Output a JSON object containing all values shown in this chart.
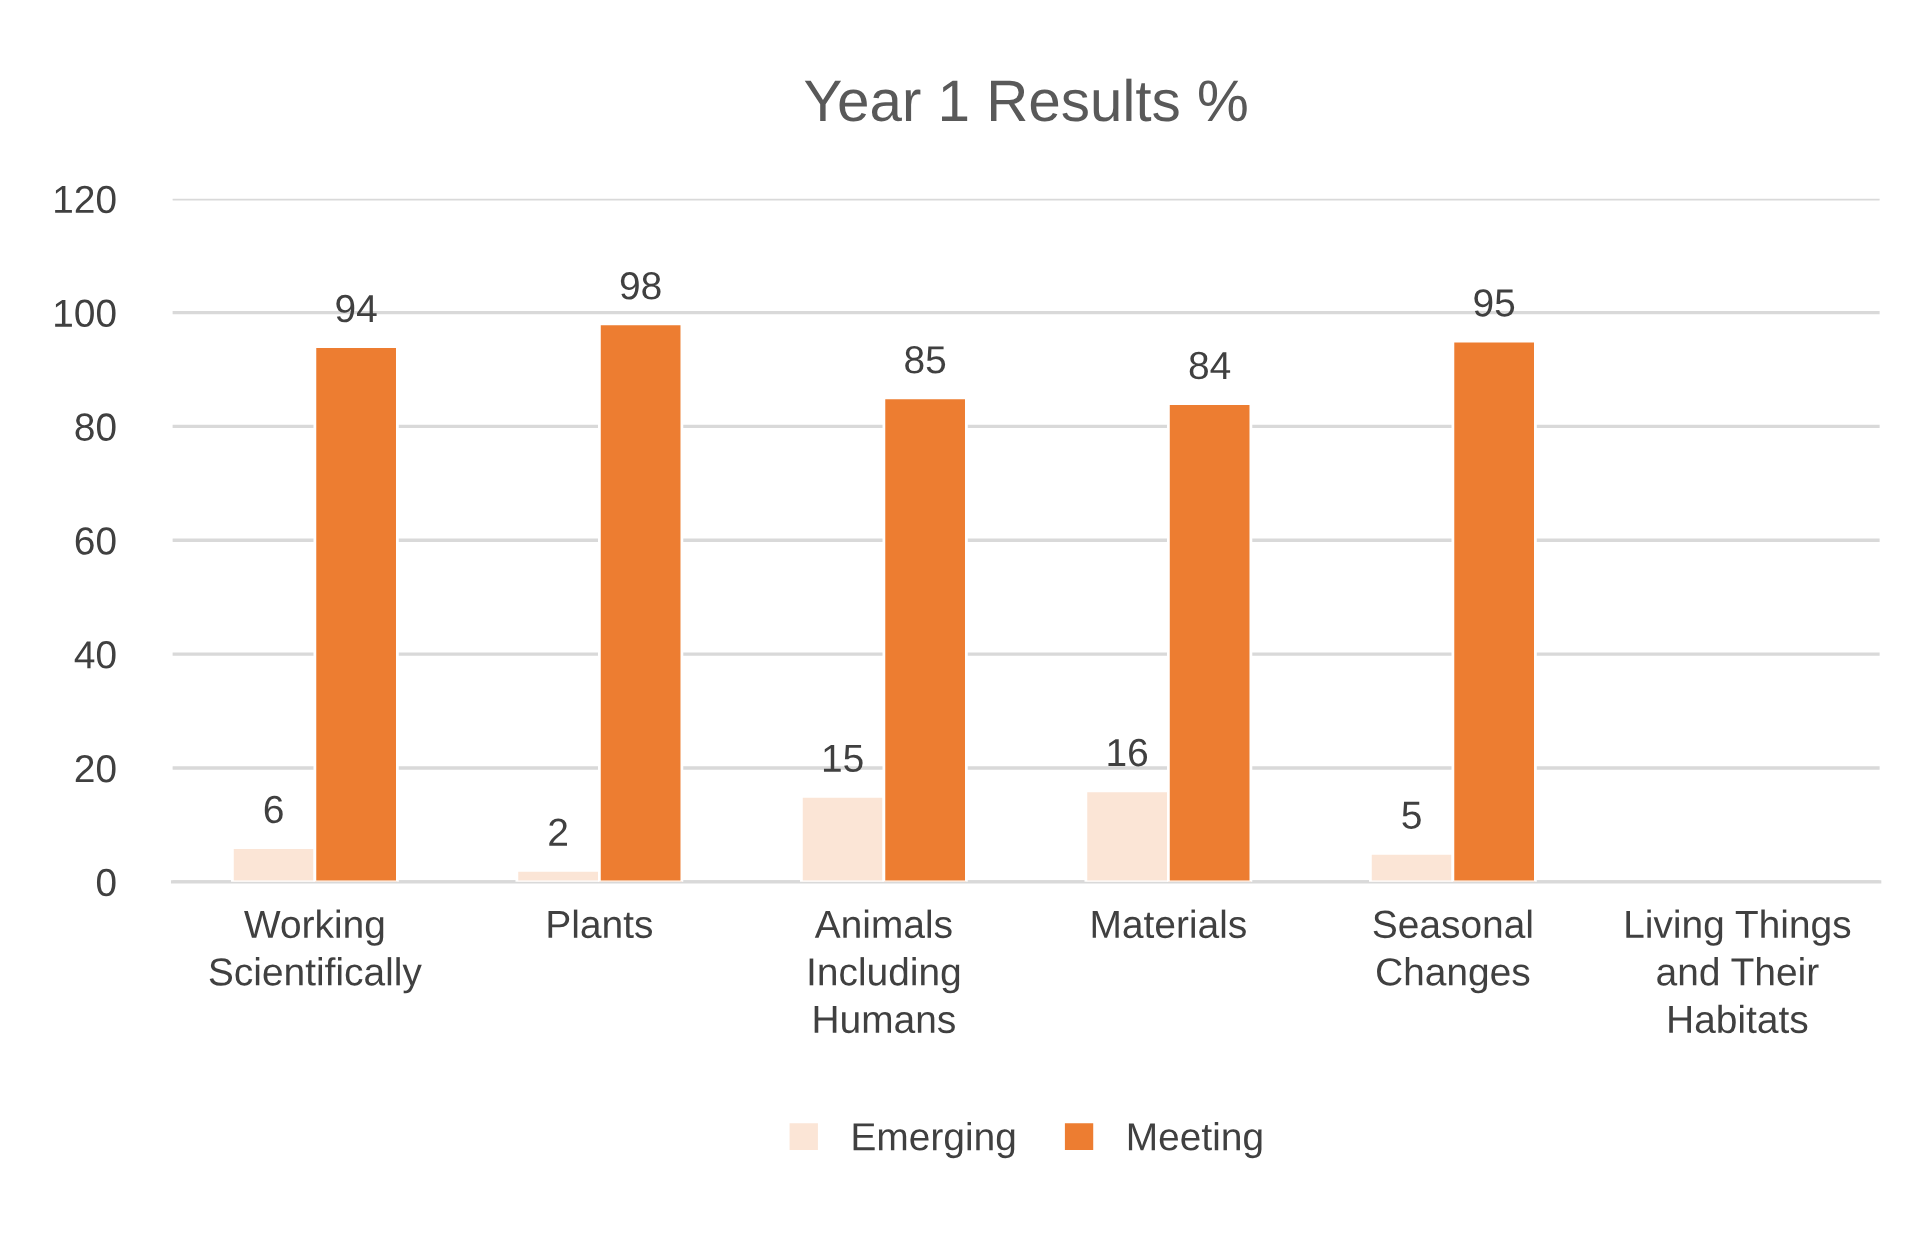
{
  "chart_data": {
    "type": "bar",
    "title": "Year 1 Results %",
    "categories": [
      "Working\nScientifically",
      "Plants",
      "Animals\nIncluding\nHumans",
      "Materials",
      "Seasonal\nChanges",
      "Living Things\nand Their\nHabitats"
    ],
    "series": [
      {
        "name": "Emerging",
        "color": "#fbe5d6",
        "values": [
          6,
          2,
          15,
          16,
          5,
          null
        ]
      },
      {
        "name": "Meeting",
        "color": "#ed7d31",
        "values": [
          94,
          98,
          85,
          84,
          95,
          null
        ]
      }
    ],
    "ylim": [
      0,
      120
    ],
    "yticks": [
      0,
      20,
      40,
      60,
      80,
      100,
      120
    ],
    "grid": "y",
    "legend": "bottom",
    "data_labels": true
  }
}
